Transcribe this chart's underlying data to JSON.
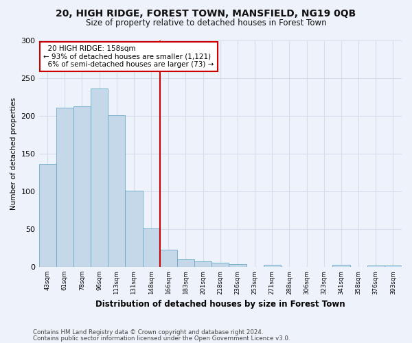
{
  "title1": "20, HIGH RIDGE, FOREST TOWN, MANSFIELD, NG19 0QB",
  "title2": "Size of property relative to detached houses in Forest Town",
  "xlabel": "Distribution of detached houses by size in Forest Town",
  "ylabel": "Number of detached properties",
  "categories": [
    "43sqm",
    "61sqm",
    "78sqm",
    "96sqm",
    "113sqm",
    "131sqm",
    "148sqm",
    "166sqm",
    "183sqm",
    "201sqm",
    "218sqm",
    "236sqm",
    "253sqm",
    "271sqm",
    "288sqm",
    "306sqm",
    "323sqm",
    "341sqm",
    "358sqm",
    "376sqm",
    "393sqm"
  ],
  "values": [
    136,
    211,
    213,
    236,
    201,
    101,
    51,
    23,
    10,
    7,
    5,
    4,
    0,
    3,
    0,
    0,
    0,
    3,
    0,
    2,
    2
  ],
  "bar_color": "#c5d8ea",
  "bar_edge_color": "#6aaac8",
  "vline_color": "#cc0000",
  "annotation_text": "  20 HIGH RIDGE: 158sqm  \n← 93% of detached houses are smaller (1,121)\n  6% of semi-detached houses are larger (73) →",
  "annotation_box_color": "#ffffff",
  "annotation_box_edge": "#cc0000",
  "footer1": "Contains HM Land Registry data © Crown copyright and database right 2024.",
  "footer2": "Contains public sector information licensed under the Open Government Licence v3.0.",
  "ylim": [
    0,
    300
  ],
  "grid_color": "#d5dded",
  "background_color": "#eef2fa"
}
